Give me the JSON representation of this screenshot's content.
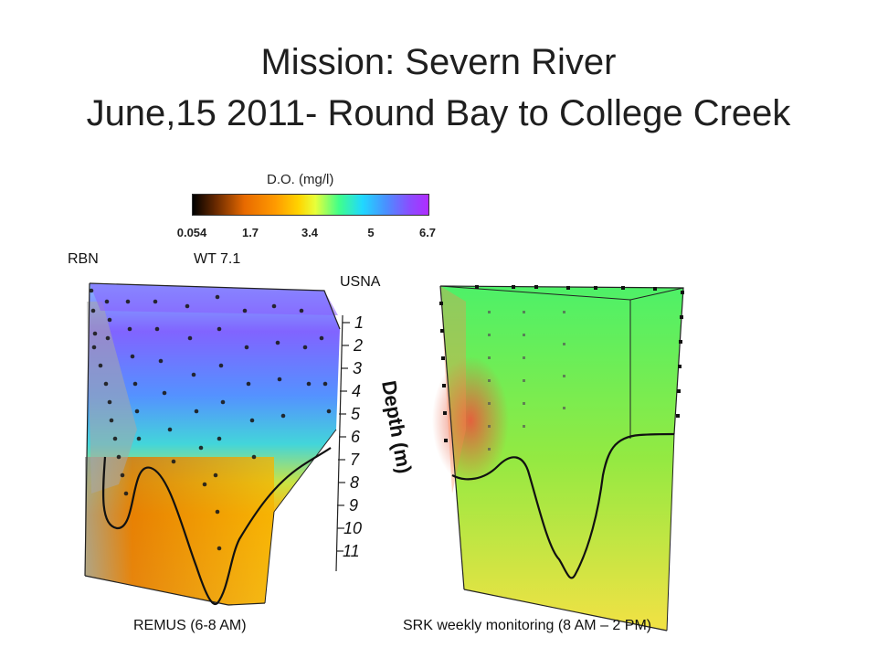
{
  "title_line1": "Mission: Severn River",
  "title_line2": "June,15 2011- Round Bay to College Creek",
  "colorbar": {
    "title": "D.O. (mg/l)",
    "ticks": [
      "0.054",
      "1.7",
      "3.4",
      "5",
      "6.7"
    ]
  },
  "labels": {
    "rbn": "RBN",
    "wt": "WT 7.1",
    "usna": "USNA",
    "remus": "REMUS (6-8 AM)",
    "srk": "SRK weekly monitoring (8 AM – 2 PM)"
  },
  "depth_axis": {
    "title": "Depth (m)",
    "ticks": [
      "1",
      "2",
      "3",
      "4",
      "5",
      "6",
      "7",
      "8",
      "9",
      "10",
      "11"
    ]
  }
}
